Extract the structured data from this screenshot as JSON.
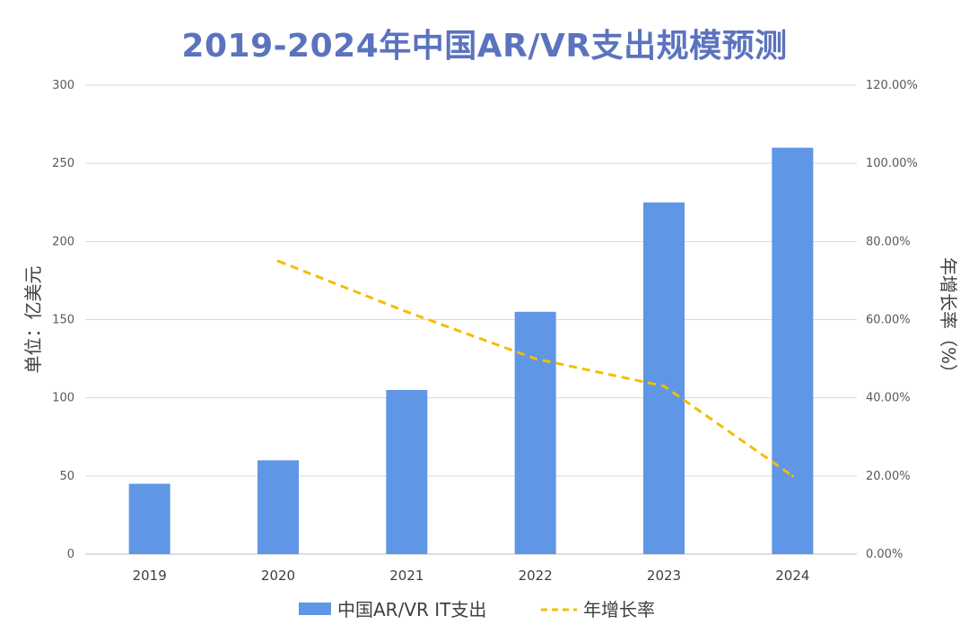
{
  "chart_data": {
    "type": "bar",
    "title": "2019-2024年中国AR/VR支出规模预测",
    "categories": [
      "2019",
      "2020",
      "2021",
      "2022",
      "2023",
      "2024"
    ],
    "ylabel": "单位：亿美元",
    "y2label": "年增长率（%）",
    "ylim": [
      0,
      300
    ],
    "y2lim": [
      0,
      1.2
    ],
    "yticks": [
      "0",
      "50",
      "100",
      "150",
      "200",
      "250",
      "300"
    ],
    "y2ticks": [
      "0.00%",
      "20.00%",
      "40.00%",
      "60.00%",
      "80.00%",
      "100.00%",
      "120.00%"
    ],
    "grid": true,
    "legend_position": "bottom",
    "series": [
      {
        "name": "中国AR/VR IT支出",
        "type": "bar",
        "axis": "left",
        "color": "#6096e6",
        "values": [
          45,
          60,
          105,
          155,
          225,
          260
        ]
      },
      {
        "name": "年增长率",
        "type": "line",
        "axis": "right",
        "style": "dashed",
        "color": "#f5bd00",
        "values": [
          null,
          0.75,
          0.62,
          0.5,
          0.43,
          0.2
        ]
      }
    ]
  }
}
